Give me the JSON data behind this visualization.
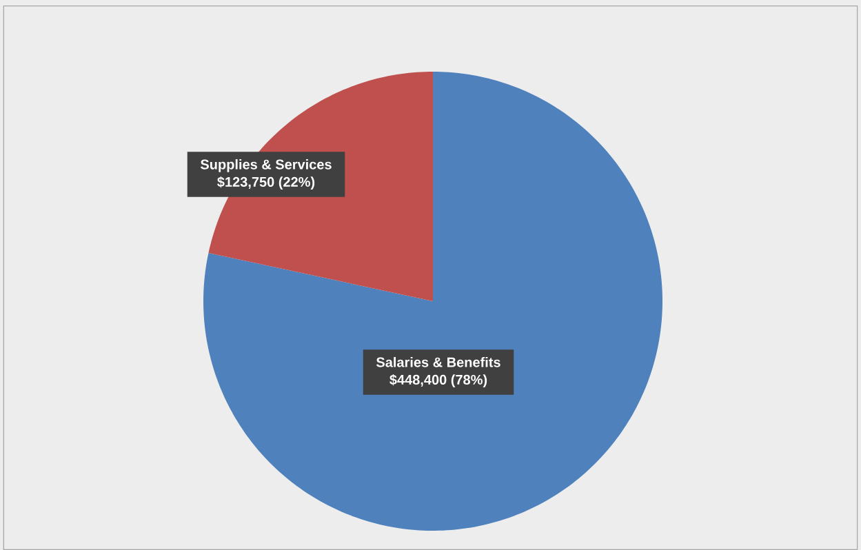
{
  "chart_data": {
    "type": "pie",
    "categories": [
      "Salaries & Benefits",
      "Supplies & Services"
    ],
    "values": [
      448400,
      123750
    ],
    "colors": [
      "#4f81bd",
      "#c0504d"
    ],
    "value_labels": [
      "$448,400  (78%)",
      "$123,750  (22%)"
    ]
  }
}
